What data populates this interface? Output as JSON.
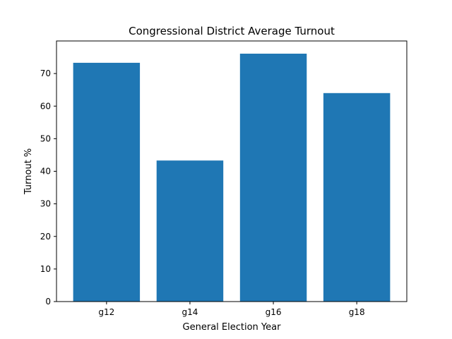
{
  "chart_data": {
    "type": "bar",
    "title": "Congressional District Average Turnout",
    "xlabel": "General Election Year",
    "ylabel": "Turnout %",
    "categories": [
      "g12",
      "g14",
      "g16",
      "g18"
    ],
    "values": [
      73.3,
      43.3,
      76.1,
      64.0
    ],
    "ylim": [
      0,
      80
    ],
    "yticks": [
      0,
      10,
      20,
      30,
      40,
      50,
      60,
      70
    ],
    "ytick_labels": [
      "0",
      "10",
      "20",
      "30",
      "40",
      "50",
      "60",
      "70"
    ],
    "grid": false,
    "bar_color": "#1f77b4"
  }
}
